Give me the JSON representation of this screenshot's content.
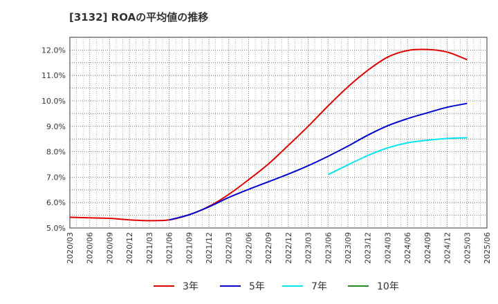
{
  "title": "[3132]  ROAの平均値の推移",
  "chart_data": {
    "type": "line",
    "title": "[3132]  ROAの平均値の推移",
    "xlabel": "",
    "ylabel": "",
    "ylim": [
      5.0,
      12.5
    ],
    "y_ticks": [
      "5.0%",
      "6.0%",
      "7.0%",
      "8.0%",
      "9.0%",
      "10.0%",
      "11.0%",
      "12.0%"
    ],
    "y_tick_values": [
      5.0,
      6.0,
      7.0,
      8.0,
      9.0,
      10.0,
      11.0,
      12.0
    ],
    "x_categories": [
      "2020/03",
      "2020/06",
      "2020/09",
      "2020/12",
      "2021/03",
      "2021/06",
      "2021/09",
      "2021/12",
      "2022/03",
      "2022/06",
      "2022/09",
      "2022/12",
      "2023/03",
      "2023/06",
      "2023/09",
      "2023/12",
      "2024/03",
      "2024/06",
      "2024/09",
      "2024/12",
      "2025/03",
      "2025/06"
    ],
    "grid": true,
    "legend_position": "bottom",
    "series": [
      {
        "name": "3年",
        "color": "#dd0000",
        "x": [
          "2020/03",
          "2020/06",
          "2020/09",
          "2020/12",
          "2021/03",
          "2021/06",
          "2021/09",
          "2021/12",
          "2022/03",
          "2022/06",
          "2022/09",
          "2022/12",
          "2023/03",
          "2023/06",
          "2023/09",
          "2023/12",
          "2024/03",
          "2024/06",
          "2024/09",
          "2024/12",
          "2025/03"
        ],
        "values": [
          5.42,
          5.4,
          5.38,
          5.32,
          5.29,
          5.32,
          5.52,
          5.85,
          6.32,
          6.9,
          7.52,
          8.25,
          9.0,
          9.8,
          10.55,
          11.2,
          11.72,
          11.98,
          12.02,
          11.92,
          11.62
        ]
      },
      {
        "name": "5年",
        "color": "#0000cc",
        "x": [
          "2021/06",
          "2021/09",
          "2021/12",
          "2022/03",
          "2022/06",
          "2022/09",
          "2022/12",
          "2023/03",
          "2023/06",
          "2023/09",
          "2023/12",
          "2024/03",
          "2024/06",
          "2024/09",
          "2024/12",
          "2025/03"
        ],
        "values": [
          5.32,
          5.52,
          5.83,
          6.2,
          6.52,
          6.82,
          7.12,
          7.45,
          7.82,
          8.22,
          8.65,
          9.02,
          9.3,
          9.53,
          9.75,
          9.9
        ]
      },
      {
        "name": "7年",
        "color": "#00e5ee",
        "x": [
          "2023/06",
          "2023/09",
          "2023/12",
          "2024/03",
          "2024/06",
          "2024/09",
          "2024/12",
          "2025/03"
        ],
        "values": [
          7.1,
          7.48,
          7.85,
          8.15,
          8.35,
          8.45,
          8.52,
          8.55
        ]
      },
      {
        "name": "10年",
        "color": "#228b22",
        "x": [],
        "values": []
      }
    ]
  }
}
